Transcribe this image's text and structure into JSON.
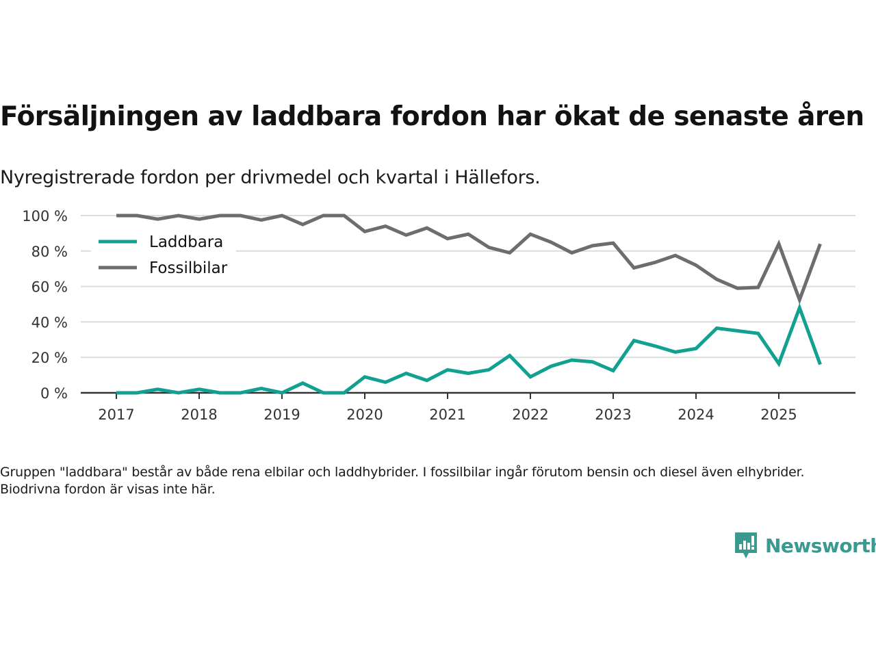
{
  "header": {
    "title": "Försäljningen av laddbara fordon har ökat de senaste åren",
    "subtitle": "Nyregistrerade fordon per drivmedel och kvartal i Hällefors."
  },
  "footnote": "Gruppen \"laddbara\" består av både rena elbilar och laddhybrider. I fossilbilar ingår förutom bensin och diesel även elhybrider. Biodrivna fordon är visas inte här.",
  "logo": {
    "text": "Newsworthy",
    "icon": "bar-chart-speech-bubble-icon",
    "color": "#3a9a8f"
  },
  "chart_data": {
    "type": "line",
    "title": "Försäljningen av laddbara fordon har ökat de senaste åren",
    "subtitle": "Nyregistrerade fordon per drivmedel och kvartal i Hällefors.",
    "xlabel": "",
    "ylabel": "",
    "x": [
      "2017Q1",
      "2017Q2",
      "2017Q3",
      "2017Q4",
      "2018Q1",
      "2018Q2",
      "2018Q3",
      "2018Q4",
      "2019Q1",
      "2019Q2",
      "2019Q3",
      "2019Q4",
      "2020Q1",
      "2020Q2",
      "2020Q3",
      "2020Q4",
      "2021Q1",
      "2021Q2",
      "2021Q3",
      "2021Q4",
      "2022Q1",
      "2022Q2",
      "2022Q3",
      "2022Q4",
      "2023Q1",
      "2023Q2",
      "2023Q3",
      "2023Q4",
      "2024Q1",
      "2024Q2",
      "2024Q3",
      "2024Q4",
      "2025Q1",
      "2025Q2",
      "2025Q3"
    ],
    "x_ticks": [
      "2017",
      "2018",
      "2019",
      "2020",
      "2021",
      "2022",
      "2023",
      "2024",
      "2025"
    ],
    "y_ticks": [
      "0 %",
      "20 %",
      "40 %",
      "60 %",
      "80 %",
      "100 %"
    ],
    "y_tick_values": [
      0,
      20,
      40,
      60,
      80,
      100
    ],
    "ylim": [
      0,
      100
    ],
    "grid": true,
    "legend_position": "top-left",
    "series": [
      {
        "name": "Laddbara",
        "color": "#12a091",
        "values": [
          0,
          0,
          2,
          0,
          2,
          0,
          0,
          2.5,
          0,
          5.5,
          0,
          0,
          9,
          6,
          11,
          7,
          13,
          11,
          13,
          21,
          9,
          15,
          18.5,
          17.5,
          12.5,
          29.5,
          26.5,
          23,
          25,
          36.5,
          35,
          33.5,
          16.5,
          48,
          16
        ]
      },
      {
        "name": "Fossilbilar",
        "color": "#6d6c71",
        "values": [
          100,
          100,
          98,
          100,
          98,
          100,
          100,
          97.5,
          100,
          95,
          100,
          100,
          91,
          94,
          89,
          93,
          87,
          89.5,
          82,
          79,
          89.5,
          85,
          79,
          83,
          84.5,
          70.5,
          73.5,
          77.5,
          72,
          64,
          59,
          59.5,
          84,
          52.5,
          84
        ]
      }
    ]
  }
}
